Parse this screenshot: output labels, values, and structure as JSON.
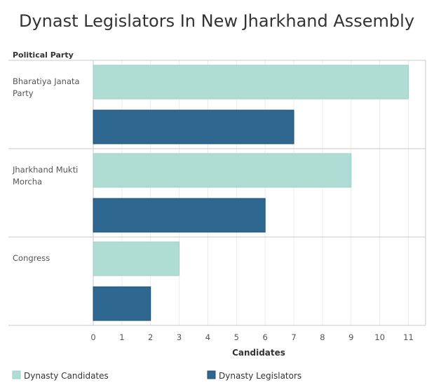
{
  "chart_data": {
    "type": "bar",
    "orientation": "horizontal",
    "title": "Dynast Legislators In New Jharkhand Assembly",
    "row_header": "Political Party",
    "xlabel": "Candidates",
    "categories": [
      [
        "Bharatiya Janata",
        "Party"
      ],
      [
        "Jharkhand Mukti",
        "Morcha"
      ],
      [
        "Congress"
      ]
    ],
    "series": [
      {
        "name": "Dynasty Candidates",
        "values": [
          11,
          9,
          3
        ],
        "color": "#afddd4"
      },
      {
        "name": "Dynasty Legislators",
        "values": [
          7,
          6,
          2
        ],
        "color": "#2e6891"
      }
    ],
    "xlim": [
      0,
      11.6
    ],
    "xticks": [
      0,
      1,
      2,
      3,
      4,
      5,
      6,
      7,
      8,
      9,
      10,
      11
    ],
    "grid": true,
    "legend_position": "bottom"
  }
}
